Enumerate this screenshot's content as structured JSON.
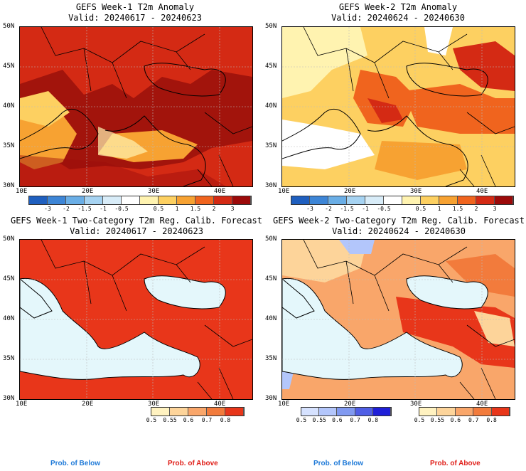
{
  "panels": [
    {
      "title": "GEFS Week-1 T2m Anomaly",
      "valid": "Valid: 20240617 - 20240623"
    },
    {
      "title": "GEFS Week-2 T2m Anomaly",
      "valid": "Valid: 20240624 - 20240630"
    },
    {
      "title": "GEFS Week-1 Two-Category T2m Reg. Calib. Forecast",
      "valid": "Valid: 20240617 - 20240623"
    },
    {
      "title": "GEFS Week-2 Two-Category T2m Reg. Calib. Forecast",
      "valid": "Valid: 20240624 - 20240630"
    }
  ],
  "axes": {
    "lat_labels": [
      "50N",
      "45N",
      "40N",
      "35N",
      "30N"
    ],
    "lon_labels": [
      "10E",
      "20E",
      "30E",
      "40E"
    ]
  },
  "anomaly_colorbar": {
    "labels": [
      "-3",
      "-2",
      "-1.5",
      "-1",
      "-0.5",
      "0.5",
      "1",
      "1.5",
      "2",
      "3"
    ],
    "colors": [
      "#1f5fbf",
      "#3d85d6",
      "#6aaee6",
      "#a6d3f2",
      "#d8ecf8",
      "#ffffff",
      "#fff3b0",
      "#fdd061",
      "#f7a232",
      "#f0641e",
      "#d42a14",
      "#9c0a0a"
    ]
  },
  "prob_colorbar": {
    "labels": [
      "0.5",
      "0.55",
      "0.6",
      "0.7",
      "0.8"
    ],
    "above_colors": [
      "#fff2c0",
      "#fdd49a",
      "#f9a66a",
      "#f27b3c",
      "#e8361a"
    ],
    "below_colors": [
      "#d6e2ff",
      "#b3c6fb",
      "#8099f0",
      "#4f5ee5",
      "#1f1fd8"
    ]
  },
  "legend": {
    "prob_below": "Prob. of Below",
    "prob_above": "Prob. of Above",
    "below_color": "#1f7ad8",
    "above_color": "#e0201a"
  },
  "map": {
    "sea_color_anomaly": "#ffffff",
    "sea_color_prob": "#e4f7fb",
    "land_hot": "#e8361a",
    "land_dark": "#a2140c"
  }
}
